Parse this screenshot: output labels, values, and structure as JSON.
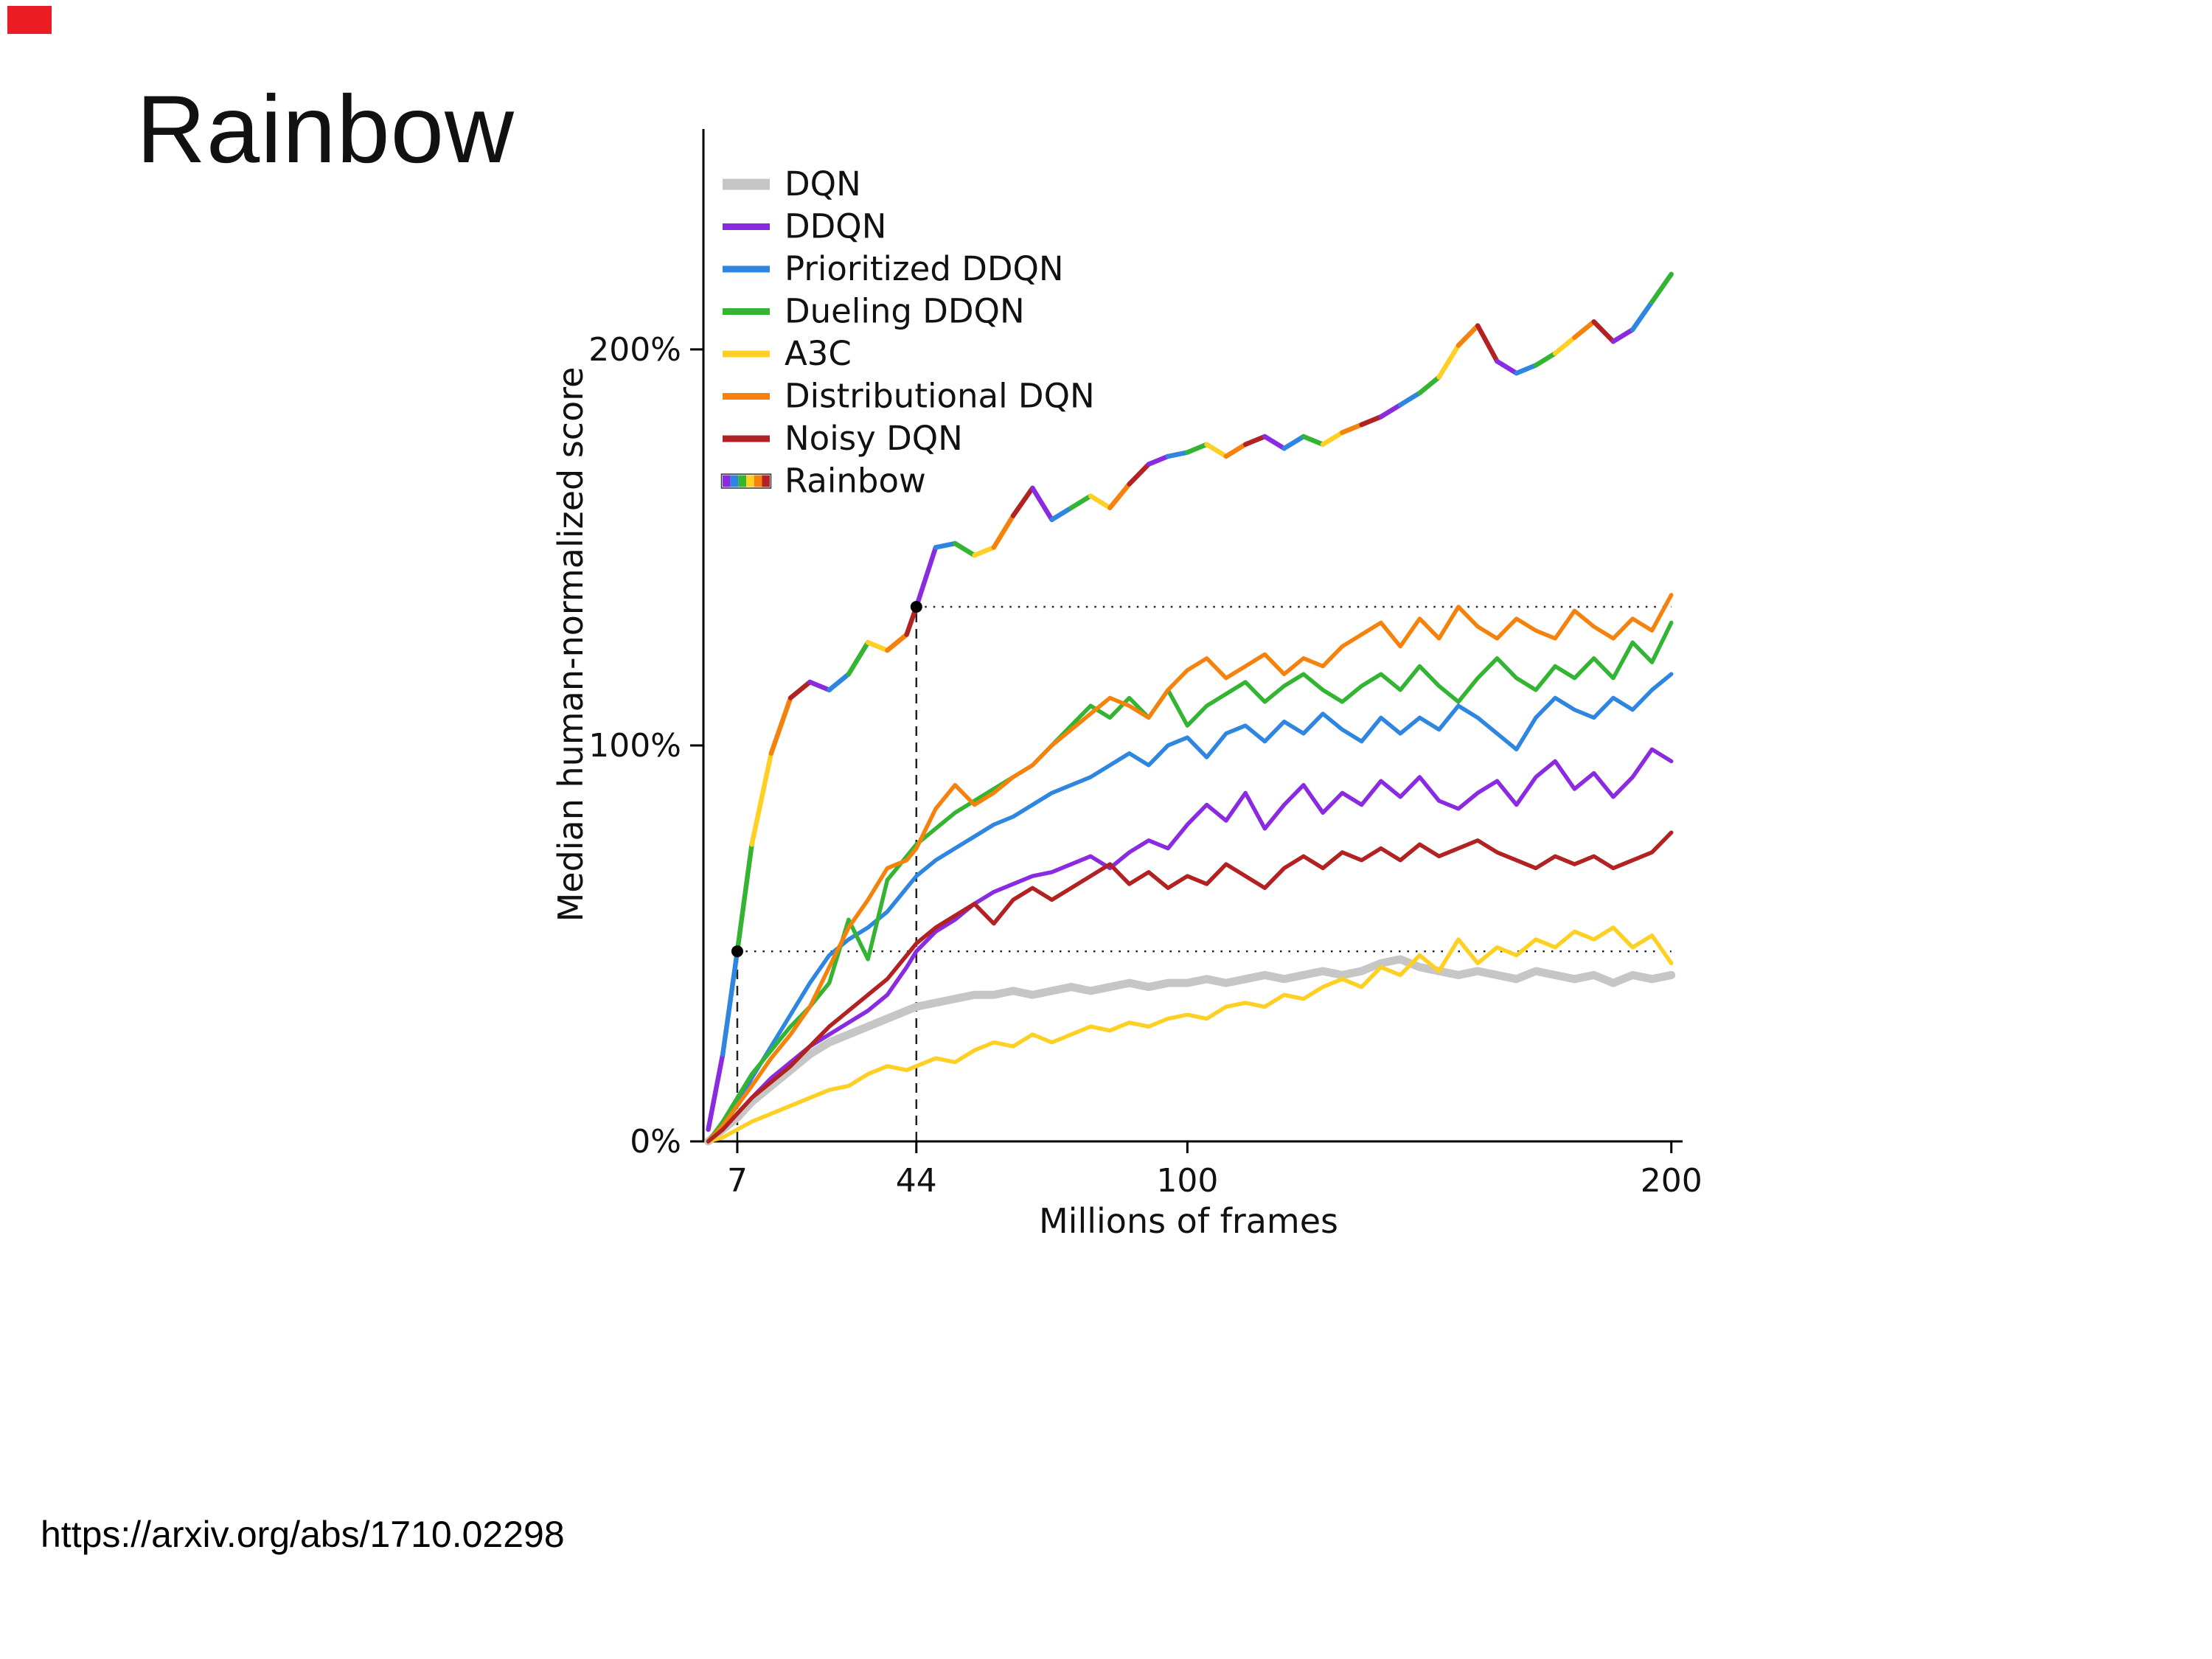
{
  "slide": {
    "title": "Rainbow",
    "source_link": "https://arxiv.org/abs/1710.02298",
    "corner_mark_color": "#ec1c24",
    "background": "#ffffff"
  },
  "chart_data": {
    "type": "line",
    "title": "",
    "xlabel": "Millions of frames",
    "ylabel": "Median human-normalized score",
    "xlim": [
      0,
      200.5
    ],
    "ylim": [
      0,
      251
    ],
    "xticks": [
      7,
      44,
      100,
      200
    ],
    "yticks": [
      {
        "value": 0,
        "label": "0%"
      },
      {
        "value": 100,
        "label": "100%"
      },
      {
        "value": 200,
        "label": "200%"
      }
    ],
    "grid": false,
    "legend_position": "top-left",
    "x": [
      1,
      4,
      7,
      10,
      14,
      18,
      22,
      26,
      30,
      34,
      38,
      42,
      44,
      48,
      52,
      56,
      60,
      64,
      68,
      72,
      76,
      80,
      84,
      88,
      92,
      96,
      100,
      104,
      108,
      112,
      116,
      120,
      124,
      128,
      132,
      136,
      140,
      144,
      148,
      152,
      156,
      160,
      164,
      168,
      172,
      176,
      180,
      184,
      188,
      192,
      196,
      200
    ],
    "series": [
      {
        "name": "DQN",
        "color": "#c6c6c6",
        "width": 11,
        "values": [
          0,
          3,
          6,
          10,
          14,
          18,
          22,
          25,
          27,
          29,
          31,
          33,
          34,
          35,
          36,
          37,
          37,
          38,
          37,
          38,
          39,
          38,
          39,
          40,
          39,
          40,
          40,
          41,
          40,
          41,
          42,
          41,
          42,
          43,
          42,
          43,
          45,
          46,
          44,
          43,
          42,
          43,
          42,
          41,
          43,
          42,
          41,
          42,
          40,
          42,
          41,
          42
        ]
      },
      {
        "name": "DDQN",
        "color": "#8a2be2",
        "width": 5.5,
        "values": [
          0,
          3,
          7,
          11,
          16,
          20,
          24,
          27,
          30,
          33,
          37,
          44,
          48,
          53,
          56,
          60,
          63,
          65,
          67,
          68,
          70,
          72,
          69,
          73,
          76,
          74,
          80,
          85,
          81,
          88,
          79,
          85,
          90,
          83,
          88,
          85,
          91,
          87,
          92,
          86,
          84,
          88,
          91,
          85,
          92,
          96,
          89,
          93,
          87,
          92,
          99,
          96
        ]
      },
      {
        "name": "Prioritized DDQN",
        "color": "#2e86e0",
        "width": 5.5,
        "values": [
          0,
          4,
          9,
          16,
          24,
          32,
          40,
          47,
          51,
          54,
          58,
          64,
          67,
          71,
          74,
          77,
          80,
          82,
          85,
          88,
          90,
          92,
          95,
          98,
          95,
          100,
          102,
          97,
          103,
          105,
          101,
          106,
          103,
          108,
          104,
          101,
          107,
          103,
          107,
          104,
          110,
          107,
          103,
          99,
          107,
          112,
          109,
          107,
          112,
          109,
          114,
          118
        ]
      },
      {
        "name": "Dueling DDQN",
        "color": "#33b533",
        "width": 5.5,
        "values": [
          0,
          5,
          11,
          17,
          23,
          29,
          34,
          40,
          56,
          46,
          66,
          72,
          75,
          79,
          83,
          86,
          89,
          92,
          95,
          100,
          105,
          110,
          107,
          112,
          107,
          114,
          105,
          110,
          113,
          116,
          111,
          115,
          118,
          114,
          111,
          115,
          118,
          114,
          120,
          115,
          111,
          117,
          122,
          117,
          114,
          120,
          117,
          122,
          117,
          126,
          121,
          131
        ]
      },
      {
        "name": "A3C",
        "color": "#ffd024",
        "width": 5.5,
        "values": [
          0,
          1,
          3,
          5,
          7,
          9,
          11,
          13,
          14,
          17,
          19,
          18,
          19,
          21,
          20,
          23,
          25,
          24,
          27,
          25,
          27,
          29,
          28,
          30,
          29,
          31,
          32,
          31,
          34,
          35,
          34,
          37,
          36,
          39,
          41,
          39,
          44,
          42,
          47,
          43,
          51,
          45,
          49,
          47,
          51,
          49,
          53,
          51,
          54,
          49,
          52,
          45
        ]
      },
      {
        "name": "Distributional DQN",
        "color": "#f5820d",
        "width": 5.5,
        "values": [
          0,
          4,
          9,
          14,
          21,
          27,
          34,
          44,
          54,
          61,
          69,
          71,
          74,
          84,
          90,
          85,
          88,
          92,
          95,
          100,
          104,
          108,
          112,
          110,
          107,
          114,
          119,
          122,
          117,
          120,
          123,
          118,
          122,
          120,
          125,
          128,
          131,
          125,
          132,
          127,
          135,
          130,
          127,
          132,
          129,
          127,
          134,
          130,
          127,
          132,
          129,
          138
        ]
      },
      {
        "name": "Noisy DQN",
        "color": "#b22222",
        "width": 5.5,
        "values": [
          0,
          3,
          7,
          11,
          15,
          19,
          24,
          29,
          33,
          37,
          41,
          47,
          50,
          54,
          57,
          60,
          55,
          61,
          64,
          61,
          64,
          67,
          70,
          65,
          68,
          64,
          67,
          65,
          70,
          67,
          64,
          69,
          72,
          69,
          73,
          71,
          74,
          71,
          75,
          72,
          74,
          76,
          73,
          71,
          69,
          72,
          70,
          72,
          69,
          71,
          73,
          78
        ]
      },
      {
        "name": "Rainbow",
        "color": "multicolor",
        "width": 6.5,
        "palette": [
          "#8a2be2",
          "#2e86e0",
          "#33b533",
          "#ffd024",
          "#f5820d",
          "#b22222"
        ],
        "values": [
          3,
          22,
          48,
          75,
          98,
          112,
          116,
          114,
          118,
          126,
          124,
          128,
          135,
          150,
          151,
          148,
          150,
          158,
          165,
          157,
          160,
          163,
          160,
          166,
          171,
          173,
          174,
          176,
          173,
          176,
          178,
          175,
          178,
          176,
          179,
          181,
          183,
          186,
          189,
          193,
          201,
          206,
          197,
          194,
          196,
          199,
          203,
          207,
          202,
          205,
          212,
          219
        ]
      }
    ],
    "annotations": {
      "marker_points": [
        {
          "x": 7,
          "y": 48
        },
        {
          "x": 44,
          "y": 135
        }
      ],
      "dotted_horizontal_to_x": 200
    }
  }
}
